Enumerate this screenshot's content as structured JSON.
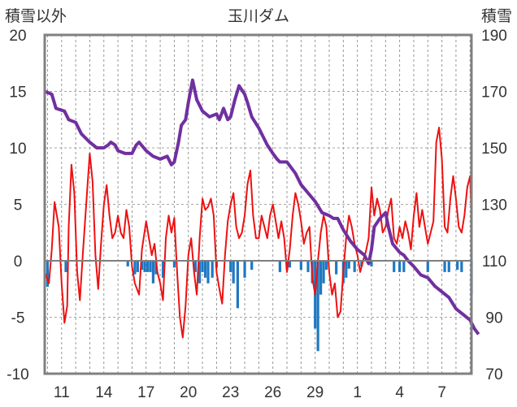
{
  "chart_data": {
    "type": "line",
    "title": "玉川ダム",
    "left_axis_label": "積雪以外",
    "right_axis_label": "積雪",
    "left_ylim": [
      -10,
      20
    ],
    "left_yticks": [
      "20",
      "15",
      "10",
      "5",
      "0",
      "-5",
      "-10"
    ],
    "right_ylim": [
      70,
      190
    ],
    "right_yticks": [
      "190",
      "170",
      "150",
      "130",
      "110",
      "90",
      "70"
    ],
    "x_tick_labels": [
      "11",
      "14",
      "17",
      "20",
      "23",
      "26",
      "29",
      "1",
      "4",
      "7"
    ],
    "x_tick_days": [
      1,
      4,
      7,
      10,
      13,
      16,
      19,
      22,
      25,
      28
    ],
    "x_range": [
      -0.2,
      30.1
    ],
    "vertical_gridlines_every_day": true,
    "horizontal_gridlines": true,
    "colors": {
      "temperature": "#ee1111",
      "snow_depth": "#7030a0",
      "bars": "#1f78c1",
      "zero_line": "#7f7f7f",
      "frame": "#808080"
    },
    "series": [
      {
        "axis": "left",
        "style": "line",
        "color": "#ee1111",
        "points": [
          [
            -0.2,
            -1.0
          ],
          [
            0.1,
            -2.0
          ],
          [
            0.3,
            1.0
          ],
          [
            0.5,
            5.2
          ],
          [
            0.8,
            3.0
          ],
          [
            1.0,
            -2.0
          ],
          [
            1.2,
            -5.5
          ],
          [
            1.4,
            -4.0
          ],
          [
            1.5,
            3.0
          ],
          [
            1.7,
            8.5
          ],
          [
            1.9,
            6.0
          ],
          [
            2.1,
            -1.0
          ],
          [
            2.3,
            -3.5
          ],
          [
            2.5,
            0.5
          ],
          [
            2.8,
            6.0
          ],
          [
            3.0,
            9.5
          ],
          [
            3.2,
            7.0
          ],
          [
            3.4,
            0.5
          ],
          [
            3.6,
            -2.5
          ],
          [
            3.8,
            1.5
          ],
          [
            4.0,
            5.0
          ],
          [
            4.2,
            6.7
          ],
          [
            4.4,
            4.0
          ],
          [
            4.6,
            2.0
          ],
          [
            4.8,
            2.5
          ],
          [
            5.0,
            4.0
          ],
          [
            5.2,
            2.5
          ],
          [
            5.4,
            2.0
          ],
          [
            5.6,
            4.5
          ],
          [
            5.8,
            3.0
          ],
          [
            6.0,
            -0.5
          ],
          [
            6.2,
            -2.0
          ],
          [
            6.5,
            -3.0
          ],
          [
            6.7,
            1.0
          ],
          [
            7.0,
            3.5
          ],
          [
            7.2,
            2.0
          ],
          [
            7.4,
            0.5
          ],
          [
            7.6,
            1.5
          ],
          [
            7.8,
            -1.0
          ],
          [
            8.0,
            -2.0
          ],
          [
            8.2,
            -3.5
          ],
          [
            8.4,
            2.0
          ],
          [
            8.6,
            4.0
          ],
          [
            8.8,
            2.5
          ],
          [
            9.0,
            3.8
          ],
          [
            9.2,
            -1.0
          ],
          [
            9.4,
            -5.0
          ],
          [
            9.6,
            -6.8
          ],
          [
            9.8,
            -4.0
          ],
          [
            10.0,
            0.5
          ],
          [
            10.2,
            2.0
          ],
          [
            10.4,
            -1.0
          ],
          [
            10.6,
            -3.0
          ],
          [
            10.8,
            2.0
          ],
          [
            11.0,
            5.5
          ],
          [
            11.2,
            4.5
          ],
          [
            11.4,
            4.8
          ],
          [
            11.6,
            5.5
          ],
          [
            11.8,
            4.0
          ],
          [
            12.0,
            -1.0
          ],
          [
            12.2,
            -2.5
          ],
          [
            12.4,
            -3.8
          ],
          [
            12.6,
            0.5
          ],
          [
            12.8,
            3.5
          ],
          [
            13.0,
            5.0
          ],
          [
            13.2,
            6.0
          ],
          [
            13.4,
            3.0
          ],
          [
            13.6,
            2.0
          ],
          [
            13.8,
            2.5
          ],
          [
            14.0,
            4.0
          ],
          [
            14.2,
            6.8
          ],
          [
            14.4,
            8.0
          ],
          [
            14.6,
            4.0
          ],
          [
            14.8,
            2.0
          ],
          [
            15.0,
            2.0
          ],
          [
            15.2,
            4.0
          ],
          [
            15.4,
            3.0
          ],
          [
            15.6,
            2.0
          ],
          [
            15.8,
            4.0
          ],
          [
            16.0,
            5.0
          ],
          [
            16.2,
            3.5
          ],
          [
            16.4,
            2.0
          ],
          [
            16.6,
            3.5
          ],
          [
            16.8,
            2.0
          ],
          [
            17.0,
            -1.0
          ],
          [
            17.2,
            1.0
          ],
          [
            17.4,
            4.0
          ],
          [
            17.6,
            6.0
          ],
          [
            17.8,
            5.0
          ],
          [
            18.0,
            3.5
          ],
          [
            18.2,
            1.5
          ],
          [
            18.4,
            2.5
          ],
          [
            18.6,
            3.0
          ],
          [
            18.8,
            -1.5
          ],
          [
            19.0,
            -3.0
          ],
          [
            19.2,
            0.0
          ],
          [
            19.4,
            2.5
          ],
          [
            19.6,
            4.0
          ],
          [
            19.8,
            3.0
          ],
          [
            20.0,
            -1.0
          ],
          [
            20.2,
            -3.0
          ],
          [
            20.4,
            -2.0
          ],
          [
            20.6,
            -5.0
          ],
          [
            20.8,
            -4.5
          ],
          [
            21.0,
            -1.0
          ],
          [
            21.2,
            2.0
          ],
          [
            21.4,
            4.0
          ],
          [
            21.6,
            3.0
          ],
          [
            21.8,
            1.5
          ],
          [
            22.0,
            0.5
          ],
          [
            22.2,
            -1.0
          ],
          [
            22.4,
            0.0
          ],
          [
            22.6,
            0.8
          ],
          [
            22.8,
            2.0
          ],
          [
            23.0,
            6.5
          ],
          [
            23.2,
            4.0
          ],
          [
            23.4,
            5.5
          ],
          [
            23.6,
            4.5
          ],
          [
            23.8,
            2.5
          ],
          [
            24.0,
            3.0
          ],
          [
            24.2,
            4.5
          ],
          [
            24.4,
            5.5
          ],
          [
            24.6,
            2.0
          ],
          [
            24.8,
            1.5
          ],
          [
            25.0,
            3.0
          ],
          [
            25.2,
            2.0
          ],
          [
            25.4,
            3.5
          ],
          [
            25.6,
            2.5
          ],
          [
            25.8,
            1.0
          ],
          [
            26.0,
            4.0
          ],
          [
            26.2,
            6.0
          ],
          [
            26.4,
            3.0
          ],
          [
            26.6,
            4.5
          ],
          [
            26.8,
            3.0
          ],
          [
            27.0,
            1.5
          ],
          [
            27.2,
            2.5
          ],
          [
            27.4,
            3.5
          ],
          [
            27.6,
            10.5
          ],
          [
            27.8,
            11.8
          ],
          [
            28.0,
            9.0
          ],
          [
            28.2,
            3.0
          ],
          [
            28.4,
            2.5
          ],
          [
            28.6,
            5.5
          ],
          [
            28.8,
            7.5
          ],
          [
            29.0,
            5.5
          ],
          [
            29.2,
            3.0
          ],
          [
            29.4,
            2.5
          ],
          [
            29.6,
            4.0
          ],
          [
            29.8,
            6.5
          ],
          [
            30.0,
            7.5
          ],
          [
            30.1,
            4.0
          ]
        ]
      },
      {
        "axis": "right",
        "style": "line",
        "color": "#7030a0",
        "points": [
          [
            -0.2,
            170
          ],
          [
            0.3,
            169
          ],
          [
            0.6,
            164
          ],
          [
            1.2,
            163
          ],
          [
            1.5,
            160
          ],
          [
            2.0,
            159
          ],
          [
            2.4,
            155
          ],
          [
            3.0,
            152
          ],
          [
            3.5,
            150
          ],
          [
            4.0,
            150
          ],
          [
            4.3,
            151
          ],
          [
            4.5,
            152
          ],
          [
            4.8,
            151
          ],
          [
            5.0,
            149
          ],
          [
            5.5,
            148
          ],
          [
            6.0,
            148
          ],
          [
            6.3,
            151
          ],
          [
            6.5,
            152
          ],
          [
            7.0,
            149
          ],
          [
            7.5,
            147
          ],
          [
            8.0,
            146
          ],
          [
            8.5,
            147
          ],
          [
            8.8,
            144
          ],
          [
            9.0,
            145
          ],
          [
            9.3,
            152
          ],
          [
            9.5,
            158
          ],
          [
            9.8,
            160
          ],
          [
            10.0,
            166
          ],
          [
            10.3,
            174
          ],
          [
            10.6,
            167
          ],
          [
            11.0,
            163
          ],
          [
            11.5,
            161
          ],
          [
            12.0,
            162
          ],
          [
            12.2,
            160
          ],
          [
            12.5,
            164
          ],
          [
            12.8,
            160
          ],
          [
            13.0,
            161
          ],
          [
            13.3,
            167
          ],
          [
            13.6,
            172
          ],
          [
            14.0,
            169
          ],
          [
            14.2,
            166
          ],
          [
            14.5,
            161
          ],
          [
            15.0,
            157
          ],
          [
            15.3,
            154
          ],
          [
            15.6,
            151
          ],
          [
            16.0,
            148
          ],
          [
            16.3,
            146
          ],
          [
            16.5,
            145
          ],
          [
            17.0,
            145
          ],
          [
            17.3,
            143
          ],
          [
            17.6,
            141
          ],
          [
            18.0,
            137
          ],
          [
            18.5,
            134
          ],
          [
            19.0,
            131
          ],
          [
            19.5,
            127
          ],
          [
            20.0,
            126
          ],
          [
            20.3,
            125
          ],
          [
            20.6,
            125
          ],
          [
            21.0,
            121
          ],
          [
            21.5,
            117
          ],
          [
            22.0,
            114
          ],
          [
            22.5,
            112
          ],
          [
            22.8,
            109
          ],
          [
            23.0,
            114
          ],
          [
            23.2,
            122
          ],
          [
            23.6,
            125
          ],
          [
            23.8,
            126
          ],
          [
            24.0,
            127
          ],
          [
            24.2,
            122
          ],
          [
            24.5,
            116
          ],
          [
            25.0,
            113
          ],
          [
            25.3,
            112
          ],
          [
            25.6,
            110
          ],
          [
            26.0,
            108
          ],
          [
            26.5,
            105
          ],
          [
            27.0,
            104
          ],
          [
            27.5,
            101
          ],
          [
            28.0,
            99
          ],
          [
            28.5,
            97
          ],
          [
            29.0,
            93
          ],
          [
            29.5,
            91
          ],
          [
            30.0,
            89
          ],
          [
            30.3,
            86
          ],
          [
            30.6,
            84
          ]
        ]
      },
      {
        "axis": "left",
        "style": "bar",
        "color": "#1f78c1",
        "points": [
          [
            0.0,
            -2.3
          ],
          [
            1.3,
            -1.0
          ],
          [
            5.7,
            -0.5
          ],
          [
            6.2,
            -1.2
          ],
          [
            6.4,
            -1.0
          ],
          [
            6.7,
            -0.8
          ],
          [
            6.9,
            -1.0
          ],
          [
            7.1,
            -1.0
          ],
          [
            7.3,
            -1.0
          ],
          [
            7.5,
            -2.0
          ],
          [
            7.7,
            -1.2
          ],
          [
            8.2,
            -1.5
          ],
          [
            9.0,
            -0.6
          ],
          [
            10.5,
            -1.0
          ],
          [
            10.8,
            -2.0
          ],
          [
            11.0,
            -1.0
          ],
          [
            11.2,
            -1.5
          ],
          [
            11.4,
            -2.0
          ],
          [
            11.7,
            -1.5
          ],
          [
            12.0,
            -0.6
          ],
          [
            13.0,
            -1.0
          ],
          [
            13.2,
            -2.0
          ],
          [
            13.5,
            -4.2
          ],
          [
            14.0,
            -1.5
          ],
          [
            14.5,
            -0.8
          ],
          [
            16.5,
            -1.0
          ],
          [
            17.0,
            -0.8
          ],
          [
            17.2,
            -0.6
          ],
          [
            18.0,
            -0.8
          ],
          [
            18.5,
            -1.0
          ],
          [
            18.8,
            -2.0
          ],
          [
            19.0,
            -6.0
          ],
          [
            19.2,
            -8.0
          ],
          [
            19.4,
            -3.0
          ],
          [
            19.6,
            -2.0
          ],
          [
            19.8,
            -0.8
          ],
          [
            20.5,
            -1.2
          ],
          [
            21.0,
            -2.0
          ],
          [
            21.2,
            -1.5
          ],
          [
            21.4,
            -0.7
          ],
          [
            21.8,
            -1.0
          ],
          [
            22.3,
            -0.5
          ],
          [
            23.0,
            -0.5
          ],
          [
            24.6,
            -1.0
          ],
          [
            25.0,
            -1.0
          ],
          [
            25.3,
            -1.0
          ],
          [
            27.0,
            -1.0
          ],
          [
            28.2,
            -1.0
          ],
          [
            28.5,
            -1.0
          ],
          [
            29.1,
            -0.8
          ],
          [
            29.4,
            -1.0
          ],
          [
            30.1,
            -3.0
          ]
        ]
      }
    ]
  }
}
